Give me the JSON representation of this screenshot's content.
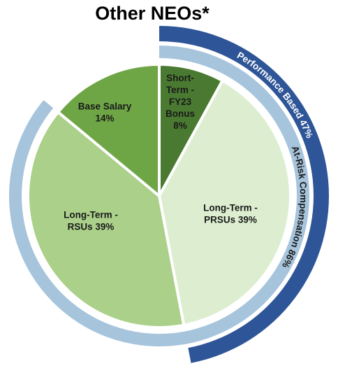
{
  "chart_data": {
    "type": "pie",
    "title": "Other NEOs*",
    "slices": [
      {
        "label_lines": [
          "Short-",
          "Term -",
          "FY23",
          "Bonus",
          "8%"
        ],
        "value": 8,
        "color": "#4a7a31"
      },
      {
        "label_lines": [
          "Long-Term -",
          "PRSUs 39%"
        ],
        "value": 39,
        "color": "#dceecf"
      },
      {
        "label_lines": [
          "Long-Term -",
          "RSUs 39%"
        ],
        "value": 39,
        "color": "#abd08a"
      },
      {
        "label_lines": [
          "Base Salary",
          "14%"
        ],
        "value": 14,
        "color": "#6ea646"
      }
    ],
    "rings": [
      {
        "label": "At-Risk Compensation 86%",
        "value": 86,
        "color": "#a6c4dc",
        "text_color": "#1a1a1a"
      },
      {
        "label": "Performance Based 47%",
        "value": 47,
        "color": "#2e5597",
        "text_color": "#ffffff"
      }
    ]
  }
}
